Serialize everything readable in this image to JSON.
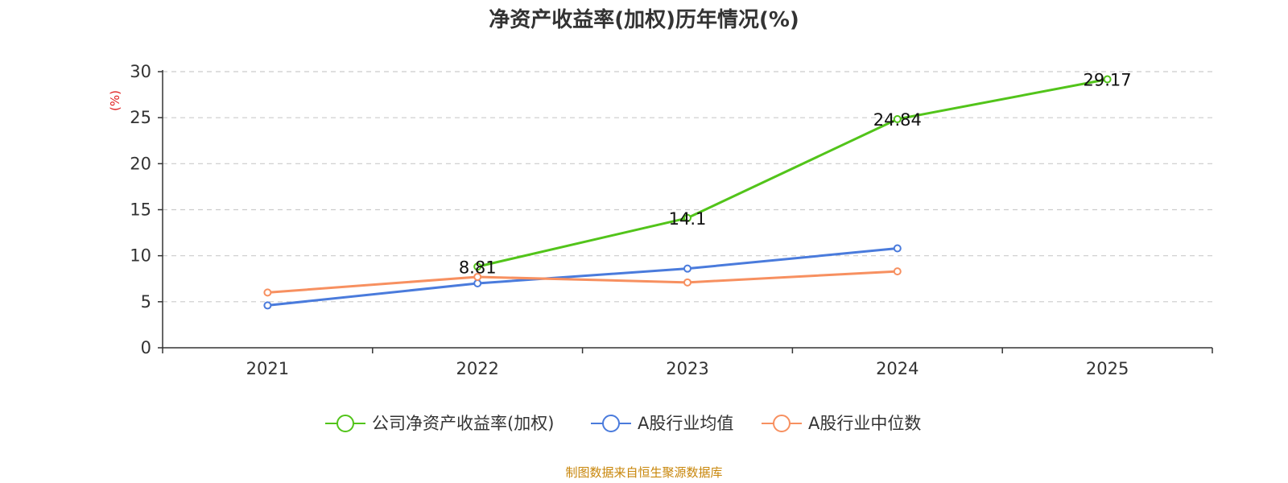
{
  "chart_data": {
    "type": "line",
    "title": "净资产收益率(加权)历年情况(%)",
    "ylabel": "(%)",
    "xlabel": "",
    "categories": [
      "2021",
      "2022",
      "2023",
      "2024",
      "2025"
    ],
    "ylim": [
      0,
      30
    ],
    "yticks": [
      0,
      5,
      10,
      15,
      20,
      25,
      30
    ],
    "grid": "horizontal-dashed",
    "legend_position": "bottom",
    "series": [
      {
        "name": "公司净资产收益率(加权)",
        "color": "#52c41a",
        "values": [
          null,
          8.81,
          14.1,
          24.84,
          29.17
        ],
        "labels": [
          null,
          "8.81",
          "14.1",
          "24.84",
          "29.17"
        ]
      },
      {
        "name": "A股行业均值",
        "color": "#4a7bdc",
        "values": [
          4.6,
          7.0,
          8.6,
          10.8,
          null
        ]
      },
      {
        "name": "A股行业中位数",
        "color": "#f79060",
        "values": [
          6.0,
          7.7,
          7.1,
          8.3,
          null
        ]
      }
    ]
  },
  "ylabel_color": "#e02020",
  "source": {
    "text": "制图数据来自恒生聚源数据库",
    "color": "#c8860a"
  }
}
